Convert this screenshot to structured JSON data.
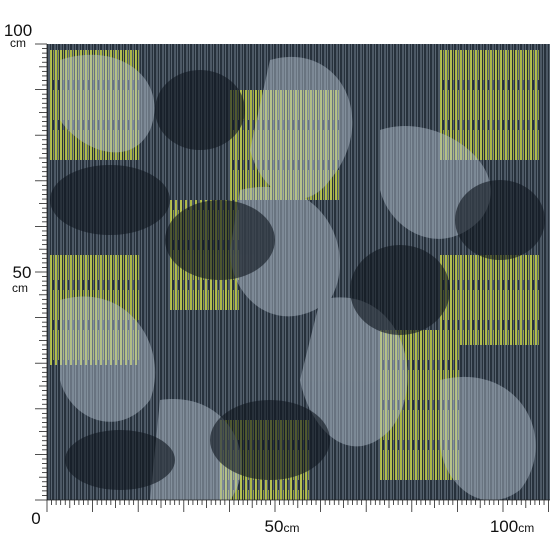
{
  "ruler": {
    "left": [
      {
        "number": "100",
        "unit": "cm"
      },
      {
        "number": "50",
        "unit": "cm"
      },
      {
        "number": "0"
      }
    ],
    "bottom": [
      {
        "number": "50",
        "unit": "cm"
      },
      {
        "number": "100",
        "unit": "cm"
      }
    ]
  }
}
